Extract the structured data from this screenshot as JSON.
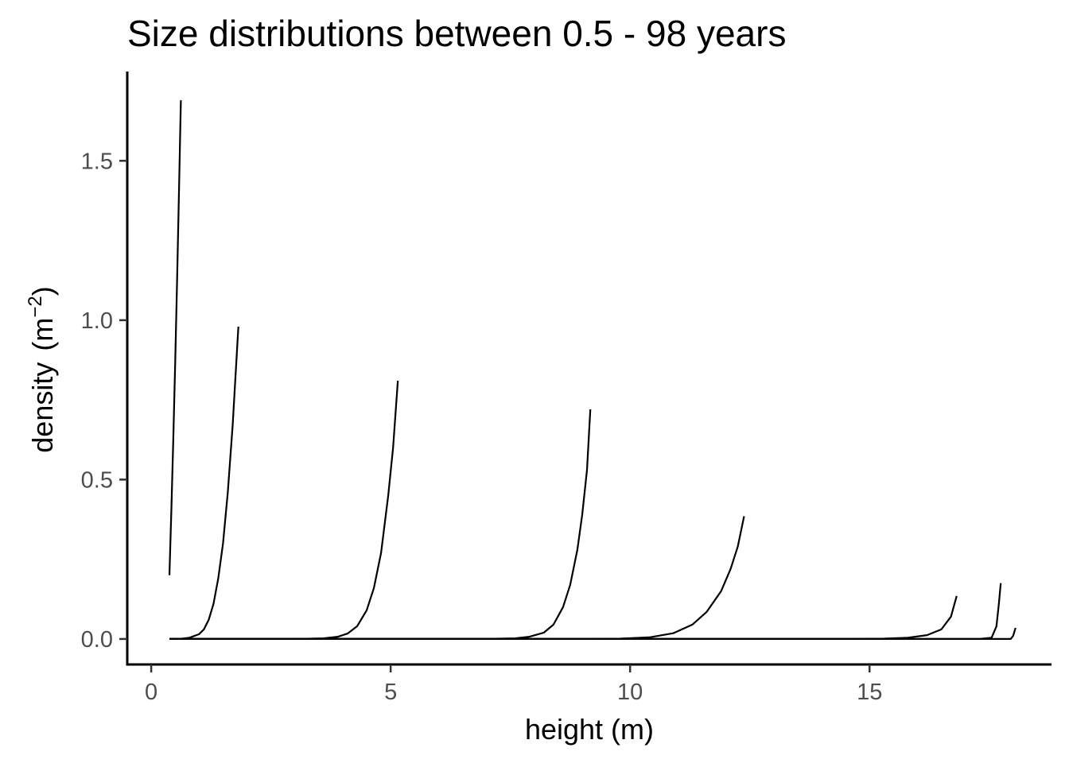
{
  "chart_data": {
    "type": "line",
    "title": "Size distributions between 0.5 - 98 years",
    "xlabel": "height (m)",
    "ylabel_main": "density",
    "ylabel_unit_base": "m",
    "ylabel_unit_exp": "−2",
    "xlim": [
      -0.5,
      18.8
    ],
    "ylim": [
      -0.08,
      1.78
    ],
    "x_ticks": [
      {
        "value": 0,
        "label": "0"
      },
      {
        "value": 5,
        "label": "5"
      },
      {
        "value": 10,
        "label": "10"
      },
      {
        "value": 15,
        "label": "15"
      }
    ],
    "y_ticks": [
      {
        "value": 0.0,
        "label": "0.0"
      },
      {
        "value": 0.5,
        "label": "0.5"
      },
      {
        "value": 1.0,
        "label": "1.0"
      },
      {
        "value": 1.5,
        "label": "1.5"
      }
    ],
    "grid": false,
    "legend": "none",
    "line_color": "#000000",
    "series": [
      {
        "x": [
          0.38,
          0.42,
          0.46,
          0.5,
          0.54,
          0.58,
          0.62
        ],
        "y": [
          0.2,
          0.4,
          0.62,
          0.86,
          1.12,
          1.4,
          1.69
        ]
      },
      {
        "x": [
          0.38,
          0.6,
          0.8,
          1.0,
          1.1,
          1.2,
          1.3,
          1.4,
          1.5,
          1.6,
          1.7,
          1.82
        ],
        "y": [
          0.0,
          0.0,
          0.004,
          0.015,
          0.03,
          0.06,
          0.11,
          0.19,
          0.3,
          0.46,
          0.67,
          0.98
        ]
      },
      {
        "x": [
          0.38,
          3.0,
          3.6,
          3.9,
          4.1,
          4.3,
          4.5,
          4.65,
          4.8,
          4.95,
          5.05,
          5.15
        ],
        "y": [
          0.0,
          0.0,
          0.002,
          0.007,
          0.017,
          0.04,
          0.09,
          0.16,
          0.27,
          0.45,
          0.6,
          0.81
        ]
      },
      {
        "x": [
          0.38,
          7.0,
          7.6,
          7.9,
          8.2,
          8.4,
          8.6,
          8.75,
          8.9,
          9.0,
          9.1,
          9.17
        ],
        "y": [
          0.0,
          0.0,
          0.002,
          0.007,
          0.02,
          0.045,
          0.1,
          0.17,
          0.28,
          0.39,
          0.53,
          0.72
        ]
      },
      {
        "x": [
          0.38,
          9.0,
          9.8,
          10.4,
          10.9,
          11.3,
          11.6,
          11.9,
          12.1,
          12.25,
          12.38
        ],
        "y": [
          0.0,
          0.0,
          0.001,
          0.005,
          0.018,
          0.045,
          0.085,
          0.15,
          0.22,
          0.29,
          0.385
        ]
      },
      {
        "x": [
          0.38,
          14.5,
          15.3,
          15.8,
          16.2,
          16.5,
          16.7,
          16.82
        ],
        "y": [
          0.0,
          0.0,
          0.001,
          0.004,
          0.012,
          0.03,
          0.07,
          0.135
        ]
      },
      {
        "x": [
          0.38,
          17.3,
          17.55,
          17.65,
          17.7,
          17.74
        ],
        "y": [
          0.0,
          0.0,
          0.004,
          0.04,
          0.11,
          0.175
        ]
      },
      {
        "x": [
          0.38,
          17.95,
          18.0,
          18.05
        ],
        "y": [
          0.0,
          0.0,
          0.01,
          0.035
        ]
      }
    ]
  }
}
